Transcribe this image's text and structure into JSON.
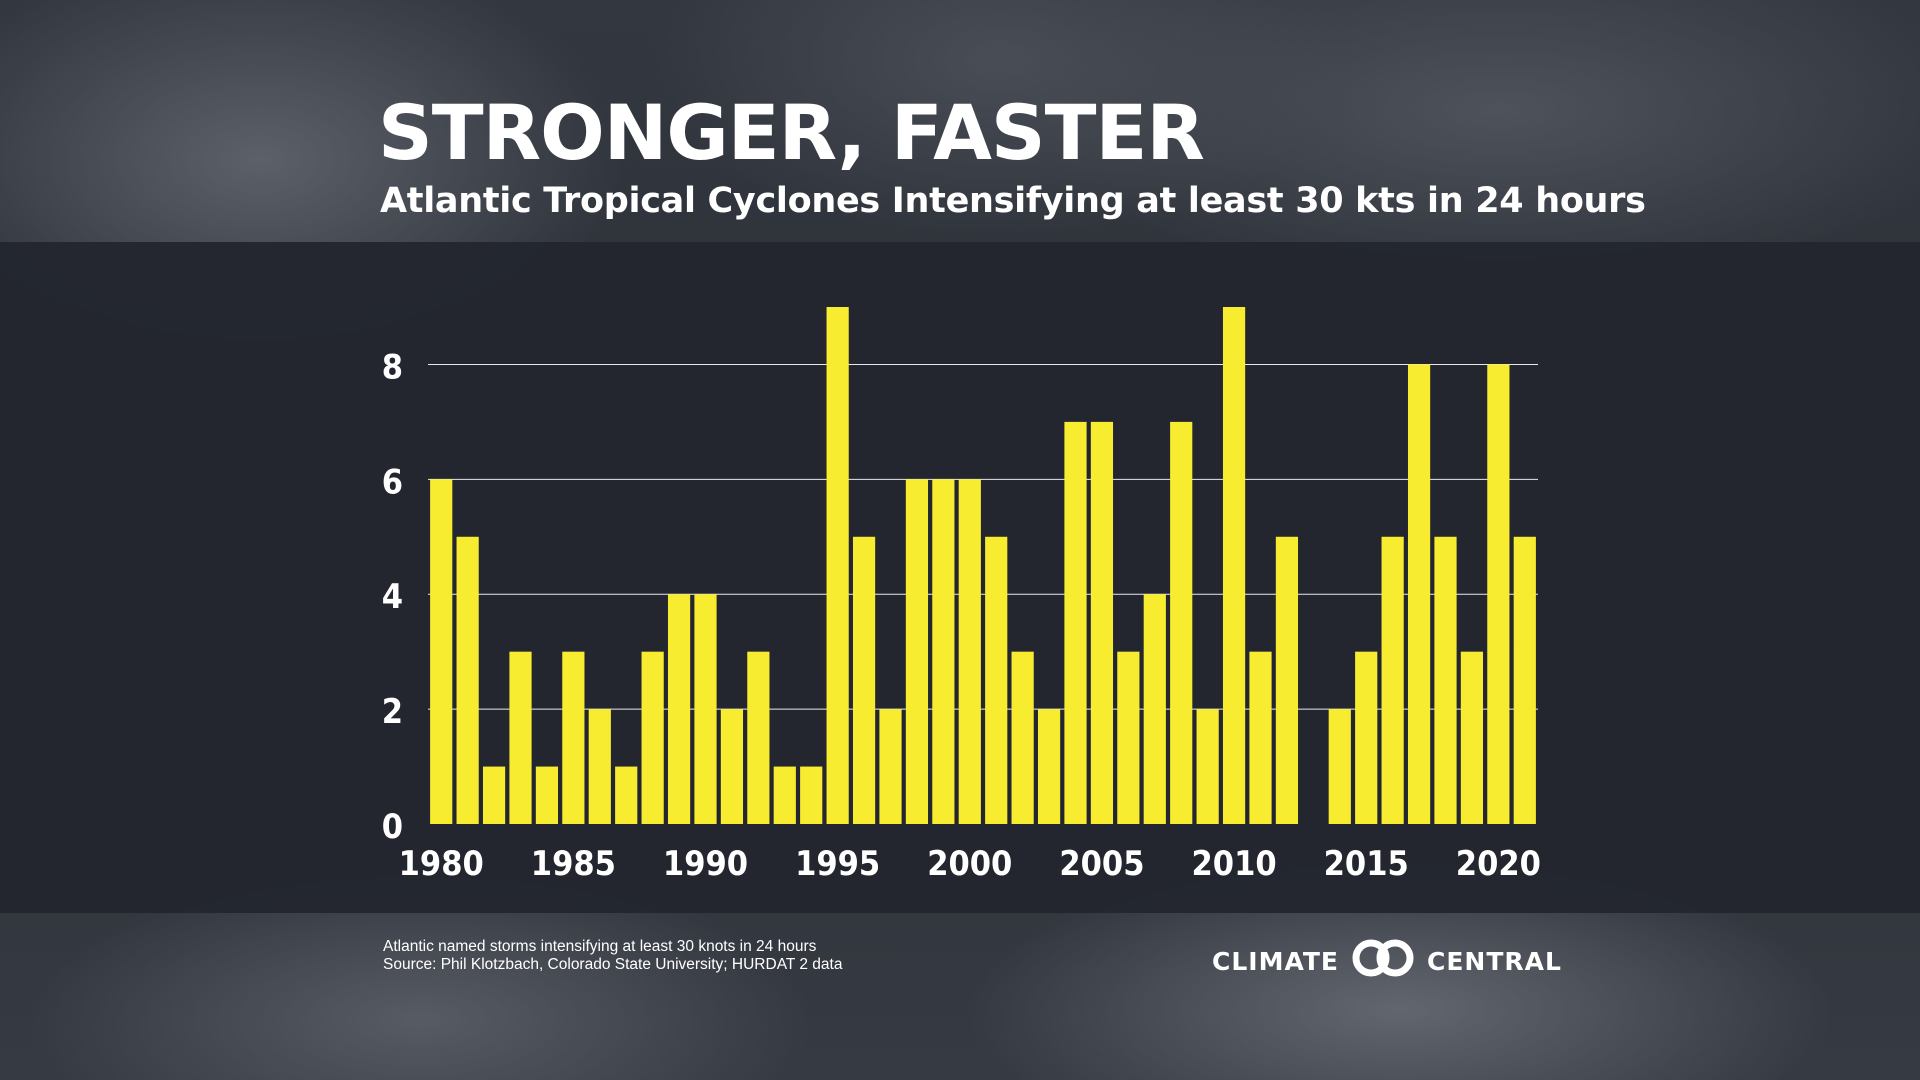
{
  "header": {
    "title": "STRONGER, FASTER",
    "subtitle": "Atlantic Tropical Cyclones Intensifying at least 30 kts in 24 hours"
  },
  "footer": {
    "note": "Atlantic named storms intensifying at least 30 knots in 24 hours",
    "source": "Source: Phil Klotzbach, Colorado State University; HURDAT 2 data"
  },
  "brand": {
    "left_word": "CLIMATE",
    "right_word": "CENTRAL",
    "logo_icon": "interlocking-rings-icon"
  },
  "colors": {
    "bar": "#F8EC31",
    "band": "#23262E",
    "text": "#FFFFFF",
    "grid": "#FFFFFF"
  },
  "chart_data": {
    "type": "bar",
    "title": "STRONGER, FASTER",
    "subtitle": "Atlantic Tropical Cyclones Intensifying at least 30 kts in 24 hours",
    "xlabel": "",
    "ylabel": "",
    "categories": [
      1980,
      1981,
      1982,
      1983,
      1984,
      1985,
      1986,
      1987,
      1988,
      1989,
      1990,
      1991,
      1992,
      1993,
      1994,
      1995,
      1996,
      1997,
      1998,
      1999,
      2000,
      2001,
      2002,
      2003,
      2004,
      2005,
      2006,
      2007,
      2008,
      2009,
      2010,
      2011,
      2012,
      2013,
      2014,
      2015,
      2016,
      2017,
      2018,
      2019,
      2020,
      2021
    ],
    "values": [
      6,
      5,
      1,
      3,
      1,
      3,
      2,
      1,
      3,
      4,
      4,
      2,
      3,
      1,
      1,
      9,
      5,
      2,
      6,
      6,
      6,
      5,
      3,
      2,
      7,
      7,
      3,
      4,
      7,
      2,
      9,
      3,
      5,
      0,
      2,
      3,
      5,
      8,
      5,
      3,
      8,
      5
    ],
    "ylim": [
      0,
      9
    ],
    "yticks": [
      0,
      2,
      4,
      6,
      8
    ],
    "xtick_labels": [
      "1980",
      "1985",
      "1990",
      "1995",
      "2000",
      "2005",
      "2010",
      "2015",
      "2020"
    ],
    "grid": "horizontal",
    "legend": "none"
  }
}
